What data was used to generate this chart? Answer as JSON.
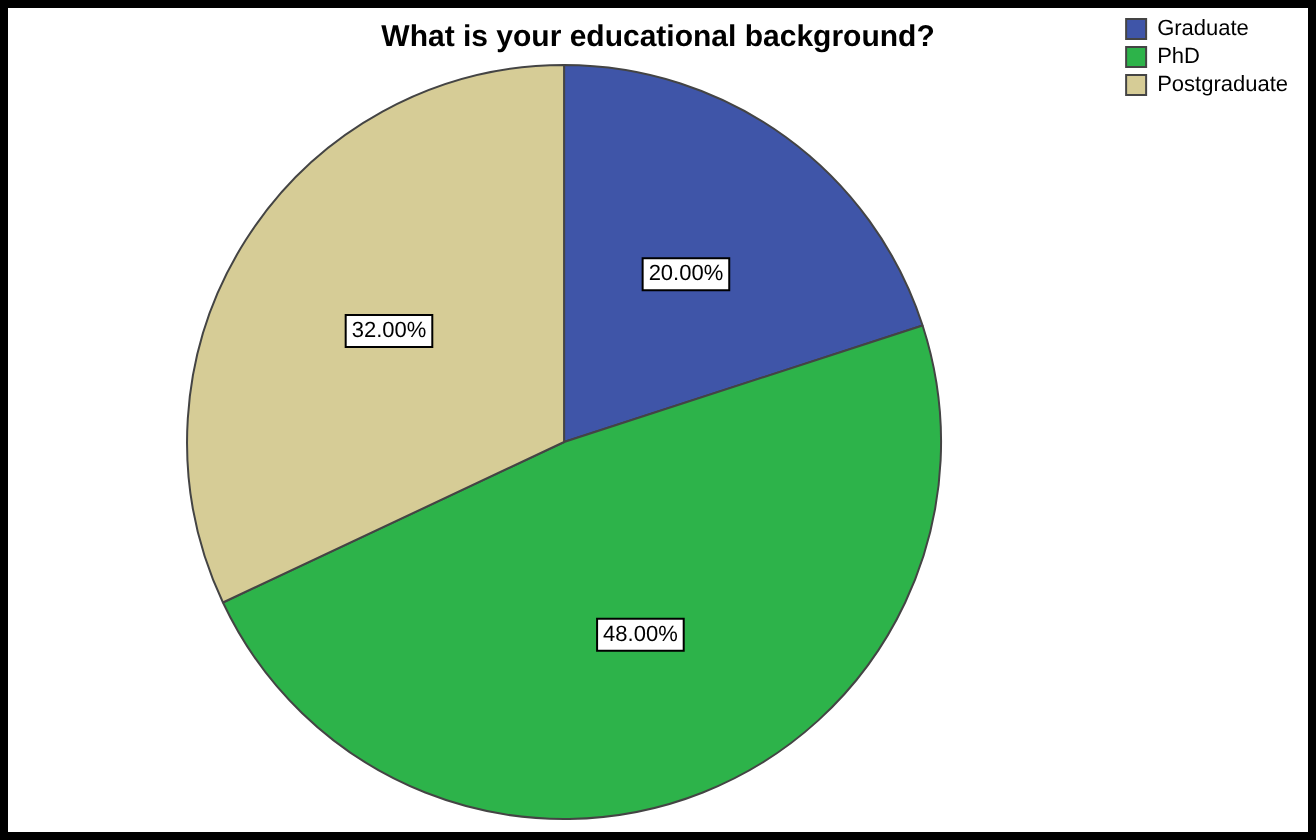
{
  "chart_data": {
    "type": "pie",
    "title": "What is your educational background?",
    "categories": [
      "Graduate",
      "PhD",
      "Postgraduate"
    ],
    "values": [
      20,
      48,
      32
    ],
    "colors": [
      "#3f55a8",
      "#2db34a",
      "#d6cc96"
    ],
    "value_labels": [
      "20.00%",
      "48.00%",
      "32.00%"
    ],
    "legend": "top right"
  }
}
